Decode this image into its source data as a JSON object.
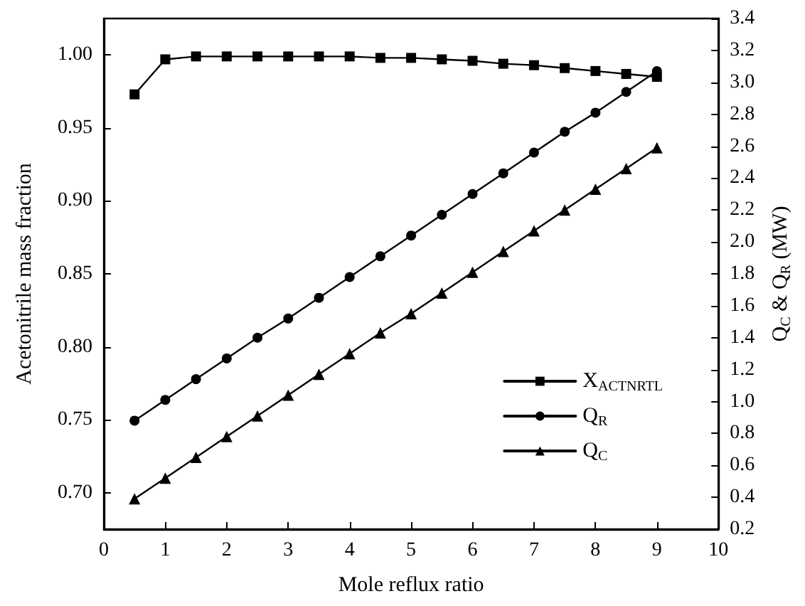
{
  "chart_data": {
    "type": "line",
    "xlabel": "Mole reflux ratio",
    "ylabel": "Acetonitrile mass fraction",
    "y2label": "Q$_{C}$ & Q$_{R}$ (MW)",
    "x": [
      0.5,
      1,
      1.5,
      2,
      2.5,
      3,
      3.5,
      4,
      4.5,
      5,
      5.5,
      6,
      6.5,
      7,
      7.5,
      8,
      8.5,
      9
    ],
    "series": [
      {
        "name": "X$_{ACTNRTL}$",
        "color": "#000000",
        "marker": "square",
        "values": [
          0.973,
          0.997,
          0.999,
          0.999,
          0.999,
          0.999,
          0.999,
          0.999,
          0.998,
          0.998,
          0.997,
          0.996,
          0.994,
          0.993,
          0.991,
          0.989,
          0.987,
          0.985
        ]
      },
      {
        "name": "Q$_{R}$",
        "color": "#000000",
        "marker": "circle",
        "axis": "y2",
        "values": [
          0.88,
          1.01,
          1.14,
          1.27,
          1.4,
          1.52,
          1.65,
          1.78,
          1.91,
          2.04,
          2.17,
          2.3,
          2.43,
          2.56,
          2.69,
          2.81,
          2.94,
          3.07
        ]
      },
      {
        "name": "Q$_{C}$",
        "color": "#000000",
        "marker": "triangle",
        "axis": "y2",
        "values": [
          0.39,
          0.52,
          0.65,
          0.78,
          0.91,
          1.04,
          1.17,
          1.3,
          1.43,
          1.55,
          1.68,
          1.81,
          1.94,
          2.07,
          2.2,
          2.33,
          2.46,
          2.59
        ]
      }
    ],
    "xlim": [
      0,
      10
    ],
    "xticks": [
      0,
      1,
      2,
      3,
      4,
      5,
      6,
      7,
      8,
      9,
      10
    ],
    "ylim": [
      0.675,
      1.025
    ],
    "yticks": [
      {
        "value": 0.7,
        "label": "0.70"
      },
      0.75,
      {
        "value": 0.8,
        "label": "0.80"
      },
      0.85,
      {
        "value": 0.9,
        "label": "0.90"
      },
      0.95,
      {
        "value": 1,
        "label": "1.00"
      }
    ],
    "y2lim": [
      0.2,
      3.4
    ],
    "y2ticks": [
      0.2,
      0.4,
      0.6,
      0.8,
      {
        "value": 1,
        "label": "1.0"
      },
      1.2,
      1.4,
      1.6,
      1.8,
      {
        "value": 2,
        "label": "2.0"
      },
      2.2,
      2.4,
      2.6,
      2.8,
      {
        "value": 3,
        "label": "3.0"
      },
      3.2,
      3.4
    ],
    "grid": false,
    "legend": "bottom right",
    "line_style": "solid"
  }
}
